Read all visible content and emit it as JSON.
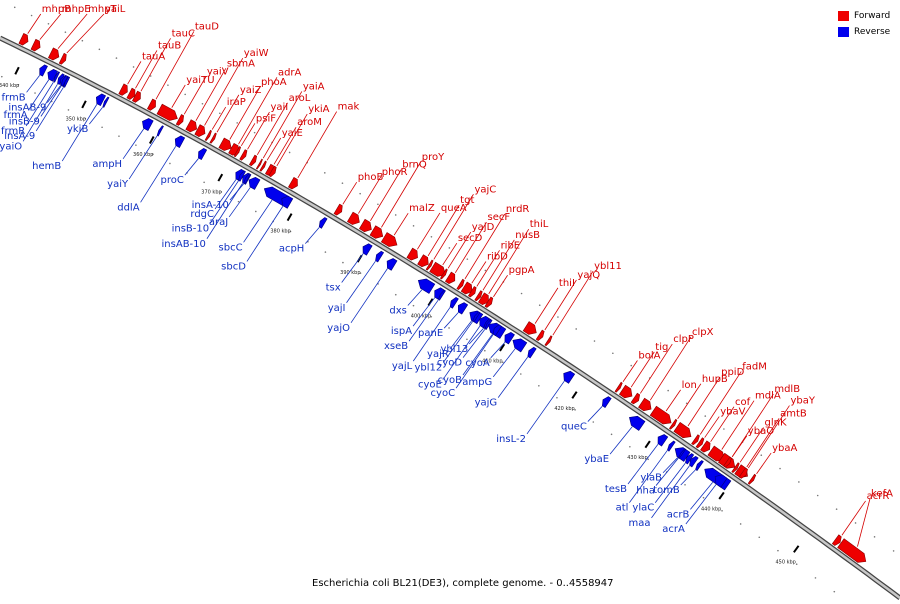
{
  "caption": "Escherichia coli BL21(DE3), complete genome. - 0..4558947",
  "legend": [
    {
      "label": "Forward",
      "color": "#ee0000"
    },
    {
      "label": "Reverse",
      "color": "#0000ee"
    }
  ],
  "colors": {
    "forward": "#ee0000",
    "reverse": "#0000ee",
    "forward_label": "#d40000",
    "reverse_label": "#1030c0"
  },
  "genome_span_kbp": [
    336,
    462
  ],
  "ticks": [
    {
      "kbp": 340,
      "label": "340 kbp"
    },
    {
      "kbp": 350,
      "label": "350 kbp"
    },
    {
      "kbp": 360,
      "label": "360 kbp"
    },
    {
      "kbp": 370,
      "label": "370 kbp"
    },
    {
      "kbp": 380,
      "label": "380 kbp"
    },
    {
      "kbp": 390,
      "label": "390 kbp"
    },
    {
      "kbp": 400,
      "label": "400 kbp"
    },
    {
      "kbp": 410,
      "label": "410 kbp"
    },
    {
      "kbp": 420,
      "label": "420 kbp"
    },
    {
      "kbp": 430,
      "label": "430 kbp"
    },
    {
      "kbp": 440,
      "label": "440 kbp"
    },
    {
      "kbp": 450,
      "label": "450 kbp"
    },
    {
      "kbp": 460,
      "label": "460 kbp"
    }
  ],
  "forward_genes": [
    {
      "name": "mhpB",
      "kbp": 338.6,
      "len": 1.0
    },
    {
      "name": "mhpT",
      "kbp": 343.0,
      "len": 1.2
    },
    {
      "name": "mhpE",
      "kbp": 340.4,
      "len": 1.0
    },
    {
      "name": "yaiL",
      "kbp": 344.6,
      "len": 0.6
    },
    {
      "name": "tauC",
      "kbp": 355.4,
      "len": 0.8
    },
    {
      "name": "tauB",
      "kbp": 354.6,
      "len": 0.8
    },
    {
      "name": "tauA",
      "kbp": 353.4,
      "len": 0.9
    },
    {
      "name": "tauD",
      "kbp": 357.6,
      "len": 0.8
    },
    {
      "name": "yaiV",
      "kbp": 361.8,
      "len": 0.6
    },
    {
      "name": "yaiTU",
      "kbp": 359.0,
      "len": 2.6
    },
    {
      "name": "yaiZ",
      "kbp": 366.7,
      "len": 0.3
    },
    {
      "name": "yaiW",
      "kbp": 364.5,
      "len": 1.1
    },
    {
      "name": "sbmA",
      "kbp": 363.2,
      "len": 1.2
    },
    {
      "name": "psiF",
      "kbp": 370.2,
      "len": 0.3
    },
    {
      "name": "yaiA",
      "kbp": 373.4,
      "len": 0.2
    },
    {
      "name": "iraP",
      "kbp": 366.0,
      "len": 0.3
    },
    {
      "name": "phoA",
      "kbp": 368.0,
      "len": 1.4
    },
    {
      "name": "aroL",
      "kbp": 372.4,
      "len": 0.5
    },
    {
      "name": "yaiI",
      "kbp": 371.0,
      "len": 0.5
    },
    {
      "name": "yaiE",
      "kbp": 373.9,
      "len": 0.3
    },
    {
      "name": "adrA",
      "kbp": 369.4,
      "len": 1.1
    },
    {
      "name": "aroM",
      "kbp": 374.7,
      "len": 0.7
    },
    {
      "name": "ykiA",
      "kbp": 375.2,
      "len": 0.5
    },
    {
      "name": "mak",
      "kbp": 378.0,
      "len": 0.9
    },
    {
      "name": "brnQ",
      "kbp": 388.1,
      "len": 1.3
    },
    {
      "name": "phoB",
      "kbp": 384.5,
      "len": 0.7
    },
    {
      "name": "phoR",
      "kbp": 386.4,
      "len": 1.3
    },
    {
      "name": "proY",
      "kbp": 389.6,
      "len": 1.4
    },
    {
      "name": "malZ",
      "kbp": 391.2,
      "len": 1.8
    },
    {
      "name": "yajC",
      "kbp": 397.5,
      "len": 0.3
    },
    {
      "name": "tgt",
      "kbp": 396.3,
      "len": 1.1
    },
    {
      "name": "secD",
      "kbp": 398.0,
      "len": 1.8
    },
    {
      "name": "queA",
      "kbp": 394.8,
      "len": 1.1
    },
    {
      "name": "nusB",
      "kbp": 404.3,
      "len": 0.4
    },
    {
      "name": "yajD",
      "kbp": 399.5,
      "len": 0.3
    },
    {
      "name": "ribE",
      "kbp": 403.4,
      "len": 0.5
    },
    {
      "name": "secF",
      "kbp": 400.2,
      "len": 0.9
    },
    {
      "name": "ribD",
      "kbp": 402.4,
      "len": 1.1
    },
    {
      "name": "nrdR",
      "kbp": 401.8,
      "len": 0.4
    },
    {
      "name": "thiL",
      "kbp": 404.8,
      "len": 1.0
    },
    {
      "name": "pgpA",
      "kbp": 405.7,
      "len": 0.5
    },
    {
      "name": "thiI",
      "kbp": 411.0,
      "len": 1.4
    },
    {
      "name": "yajQ",
      "kbp": 412.8,
      "len": 0.5
    },
    {
      "name": "ybl11",
      "kbp": 414.0,
      "len": 0.3
    },
    {
      "name": "bolA",
      "kbp": 423.6,
      "len": 0.3
    },
    {
      "name": "tig",
      "kbp": 424.2,
      "len": 1.3
    },
    {
      "name": "clpP",
      "kbp": 425.8,
      "len": 0.6
    },
    {
      "name": "clpX",
      "kbp": 426.8,
      "len": 1.3
    },
    {
      "name": "lon",
      "kbp": 428.4,
      "len": 2.4
    },
    {
      "name": "hupB",
      "kbp": 431.0,
      "len": 0.3
    },
    {
      "name": "ybaV",
      "kbp": 434.6,
      "len": 0.4
    },
    {
      "name": "ppiD",
      "kbp": 431.6,
      "len": 1.9
    },
    {
      "name": "fadM",
      "kbp": 434.0,
      "len": 0.4
    },
    {
      "name": "ybaO",
      "kbp": 438.3,
      "len": 0.4
    },
    {
      "name": "cof",
      "kbp": 435.2,
      "len": 0.8
    },
    {
      "name": "mdlB",
      "kbp": 437.6,
      "len": 1.8
    },
    {
      "name": "mdlA",
      "kbp": 436.2,
      "len": 1.8
    },
    {
      "name": "glnK",
      "kbp": 439.4,
      "len": 0.3
    },
    {
      "name": "ybaY",
      "kbp": 440.4,
      "len": 0.5
    },
    {
      "name": "amtB",
      "kbp": 439.8,
      "len": 1.3
    },
    {
      "name": "ybaA",
      "kbp": 441.6,
      "len": 0.3
    },
    {
      "name": "acrR",
      "kbp": 452.8,
      "len": 0.6
    },
    {
      "name": "kefA",
      "kbp": 453.5,
      "len": 3.3
    }
  ],
  "reverse_genes": [
    {
      "name": "frmB",
      "kbp": 342.6,
      "len": 0.8
    },
    {
      "name": "insA-9",
      "kbp": 346.4,
      "len": 0.3
    },
    {
      "name": "frmA",
      "kbp": 343.8,
      "len": 1.1
    },
    {
      "name": "frmR",
      "kbp": 344.9,
      "len": 0.3
    },
    {
      "name": "yaiO",
      "kbp": 345.4,
      "len": 0.5
    },
    {
      "name": "insB-9",
      "kbp": 346.0,
      "len": 0.4
    },
    {
      "name": "insAB-9",
      "kbp": 345.7,
      "len": 0.8
    },
    {
      "name": "ykiB",
      "kbp": 352.2,
      "len": 0.3
    },
    {
      "name": "hemB",
      "kbp": 351.0,
      "len": 1.0
    },
    {
      "name": "ampH",
      "kbp": 357.8,
      "len": 1.2
    },
    {
      "name": "ddlA",
      "kbp": 362.6,
      "len": 1.0
    },
    {
      "name": "yaiY",
      "kbp": 360.2,
      "len": 0.3
    },
    {
      "name": "proC",
      "kbp": 366.0,
      "len": 0.8
    },
    {
      "name": "rdgC",
      "kbp": 371.4,
      "len": 0.9
    },
    {
      "name": "insB-10",
      "kbp": 372.0,
      "len": 0.4
    },
    {
      "name": "araJ",
      "kbp": 373.3,
      "len": 1.2
    },
    {
      "name": "insAB-10",
      "kbp": 372.4,
      "len": 0.8
    },
    {
      "name": "insA-10",
      "kbp": 372.8,
      "len": 0.3
    },
    {
      "name": "sbcC",
      "kbp": 375.5,
      "len": 3.1
    },
    {
      "name": "sbcD",
      "kbp": 378.0,
      "len": 1.2
    },
    {
      "name": "acpH",
      "kbp": 383.5,
      "len": 0.6
    },
    {
      "name": "tsx",
      "kbp": 389.6,
      "len": 0.9
    },
    {
      "name": "yajI",
      "kbp": 391.5,
      "len": 0.6
    },
    {
      "name": "yajO",
      "kbp": 393.0,
      "len": 1.0
    },
    {
      "name": "dxs",
      "kbp": 397.4,
      "len": 1.9
    },
    {
      "name": "ispA",
      "kbp": 399.7,
      "len": 0.9
    },
    {
      "name": "xseB",
      "kbp": 400.5,
      "len": 0.3
    },
    {
      "name": "yajL",
      "kbp": 402.0,
      "len": 0.6
    },
    {
      "name": "panE",
      "kbp": 403.0,
      "len": 0.9
    },
    {
      "name": "ybl12",
      "kbp": 405.3,
      "len": 0.3
    },
    {
      "name": "yajR",
      "kbp": 404.6,
      "len": 1.4
    },
    {
      "name": "cyoE",
      "kbp": 406.0,
      "len": 0.9
    },
    {
      "name": "cyoA",
      "kbp": 409.5,
      "len": 0.9
    },
    {
      "name": "ybl13",
      "kbp": 406.8,
      "len": 0.3
    },
    {
      "name": "cyoB",
      "kbp": 407.2,
      "len": 2.0
    },
    {
      "name": "cyoD",
      "kbp": 407.0,
      "len": 0.3
    },
    {
      "name": "ampG",
      "kbp": 410.6,
      "len": 1.5
    },
    {
      "name": "cyoC",
      "kbp": 408.0,
      "len": 0.6
    },
    {
      "name": "yajG",
      "kbp": 412.8,
      "len": 0.6
    },
    {
      "name": "insL-2",
      "kbp": 417.6,
      "len": 1.1
    },
    {
      "name": "queC",
      "kbp": 423.0,
      "len": 0.7
    },
    {
      "name": "ybaE",
      "kbp": 426.6,
      "len": 1.7
    },
    {
      "name": "hha",
      "kbp": 433.6,
      "len": 0.2
    },
    {
      "name": "tesB",
      "kbp": 430.5,
      "len": 0.9
    },
    {
      "name": "acrA",
      "kbp": 438.2,
      "len": 1.2
    },
    {
      "name": "atl",
      "kbp": 432.0,
      "len": 0.4
    },
    {
      "name": "ylaB",
      "kbp": 432.8,
      "len": 1.6
    },
    {
      "name": "ylaC",
      "kbp": 434.4,
      "len": 0.5
    },
    {
      "name": "maa",
      "kbp": 434.9,
      "len": 0.6
    },
    {
      "name": "tomB",
      "kbp": 435.8,
      "len": 0.4
    },
    {
      "name": "acrB",
      "kbp": 436.8,
      "len": 3.1
    }
  ]
}
